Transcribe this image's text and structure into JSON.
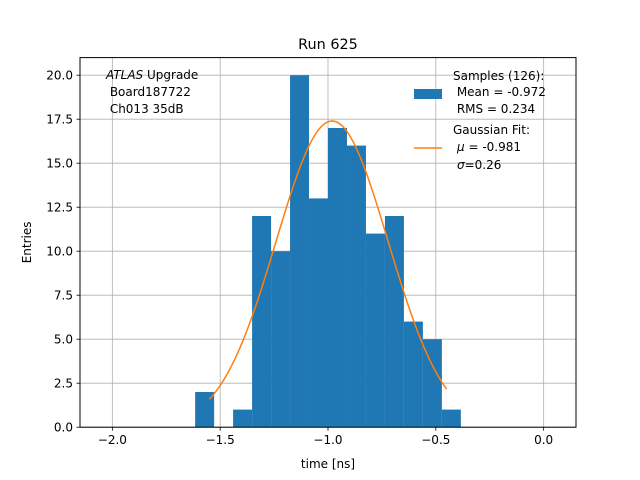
{
  "chart_data": {
    "type": "bar",
    "title": "Run 625",
    "xlabel": "time [ns]",
    "ylabel": "Entries",
    "xlim": [
      -2.15,
      0.15
    ],
    "ylim": [
      0,
      21
    ],
    "grid": true,
    "x_ticks": [
      -2.0,
      -1.5,
      -1.0,
      -0.5,
      0.0
    ],
    "x_tick_labels": [
      "−2.0",
      "−1.5",
      "−1.0",
      "−0.5",
      "0.0"
    ],
    "y_ticks": [
      0,
      2.5,
      5,
      7.5,
      10,
      12.5,
      15,
      17.5,
      20
    ],
    "y_tick_labels": [
      "0.0",
      "2.5",
      "5.0",
      "7.5",
      "10.0",
      "12.5",
      "15.0",
      "17.5",
      "20.0"
    ],
    "annotation": {
      "line1_italic": "ATLAS",
      "line1_rest": " Upgrade",
      "line2": " Board187722",
      "line3": " Ch013 35dB"
    },
    "histogram": {
      "name": "Samples (126):",
      "color": "#1f77b4",
      "bin_edges": [
        -1.616,
        -1.528,
        -1.44,
        -1.352,
        -1.264,
        -1.176,
        -1.088,
        -1.0,
        -0.912,
        -0.824,
        -0.736,
        -0.648,
        -0.56,
        -0.472,
        -0.384
      ],
      "counts": [
        2,
        0,
        1,
        12,
        10,
        20,
        13,
        17,
        16,
        11,
        12,
        6,
        5,
        1
      ]
    },
    "fit": {
      "name": "Gaussian Fit:",
      "color": "#ff7f0e",
      "amplitude": 17.4,
      "mu": -0.981,
      "sigma": 0.26,
      "x_range": [
        -1.55,
        -0.45
      ]
    },
    "legend": {
      "placement": "top-right",
      "hist_lines": [
        "Samples (126):",
        " Mean = -0.972",
        " RMS = 0.234"
      ],
      "fit_line1": "Gaussian Fit:",
      "fit_mu_symbol": "μ",
      "fit_mu_rest": " = -0.981",
      "fit_sigma_symbol": "σ",
      "fit_sigma_rest": "=0.26"
    }
  }
}
